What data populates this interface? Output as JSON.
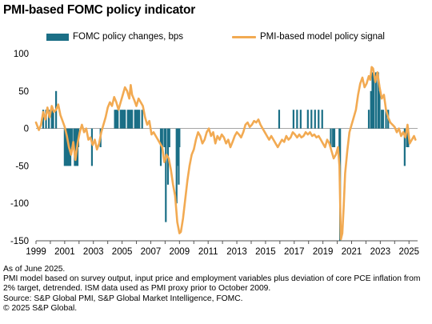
{
  "title": "PMI-based FOMC policy indicator",
  "chart_data": {
    "type": "bar+line",
    "title": "PMI-based FOMC policy indicator",
    "ylim": [
      -150,
      100
    ],
    "yticks": [
      100,
      50,
      0,
      -50,
      -100,
      -150
    ],
    "xlim": [
      1999,
      2025.6
    ],
    "xticks": [
      1999,
      2001,
      2003,
      2005,
      2007,
      2009,
      2011,
      2013,
      2015,
      2017,
      2019,
      2021,
      2023,
      2025
    ],
    "legend_position": "top",
    "series": [
      {
        "name": "FOMC policy changes, bps",
        "type": "bar",
        "color": "#1b6f86",
        "points": [
          [
            1999.5,
            25
          ],
          [
            1999.7,
            25
          ],
          [
            1999.9,
            25
          ],
          [
            2000.1,
            25
          ],
          [
            2000.2,
            25
          ],
          [
            2000.4,
            50
          ],
          [
            2001.0,
            -50
          ],
          [
            2001.1,
            -50
          ],
          [
            2001.2,
            -50
          ],
          [
            2001.3,
            -50
          ],
          [
            2001.4,
            -50
          ],
          [
            2001.5,
            -25
          ],
          [
            2001.65,
            -25
          ],
          [
            2001.7,
            -50
          ],
          [
            2001.8,
            -50
          ],
          [
            2001.9,
            -50
          ],
          [
            2001.95,
            -25
          ],
          [
            2002.9,
            -50
          ],
          [
            2003.5,
            -25
          ],
          [
            2004.5,
            25
          ],
          [
            2004.6,
            25
          ],
          [
            2004.7,
            25
          ],
          [
            2004.9,
            25
          ],
          [
            2005.0,
            25
          ],
          [
            2005.1,
            25
          ],
          [
            2005.2,
            25
          ],
          [
            2005.4,
            25
          ],
          [
            2005.5,
            25
          ],
          [
            2005.6,
            25
          ],
          [
            2005.7,
            25
          ],
          [
            2005.9,
            25
          ],
          [
            2006.0,
            25
          ],
          [
            2006.1,
            25
          ],
          [
            2006.2,
            25
          ],
          [
            2006.4,
            25
          ],
          [
            2007.7,
            -50
          ],
          [
            2007.8,
            -25
          ],
          [
            2007.95,
            -25
          ],
          [
            2008.05,
            -125
          ],
          [
            2008.2,
            -75
          ],
          [
            2008.3,
            -25
          ],
          [
            2008.8,
            -100
          ],
          [
            2008.9,
            -50
          ],
          [
            2008.95,
            -75
          ],
          [
            2009.0,
            -25
          ],
          [
            2015.95,
            25
          ],
          [
            2016.95,
            25
          ],
          [
            2017.2,
            25
          ],
          [
            2017.45,
            25
          ],
          [
            2017.95,
            25
          ],
          [
            2018.2,
            25
          ],
          [
            2018.45,
            25
          ],
          [
            2018.7,
            25
          ],
          [
            2018.95,
            25
          ],
          [
            2019.55,
            -25
          ],
          [
            2019.7,
            -25
          ],
          [
            2019.8,
            -25
          ],
          [
            2020.15,
            -50
          ],
          [
            2020.2,
            -150
          ],
          [
            2022.2,
            25
          ],
          [
            2022.35,
            50
          ],
          [
            2022.45,
            75
          ],
          [
            2022.55,
            75
          ],
          [
            2022.7,
            75
          ],
          [
            2022.85,
            75
          ],
          [
            2022.95,
            50
          ],
          [
            2023.1,
            25
          ],
          [
            2023.2,
            25
          ],
          [
            2023.4,
            25
          ],
          [
            2023.55,
            25
          ],
          [
            2024.7,
            -50
          ],
          [
            2024.85,
            -25
          ],
          [
            2024.95,
            -25
          ]
        ]
      },
      {
        "name": "PMI-based model policy signal",
        "type": "line",
        "color": "#f2aa52",
        "points": [
          [
            1999.0,
            8
          ],
          [
            1999.2,
            -2
          ],
          [
            1999.35,
            5
          ],
          [
            1999.5,
            22
          ],
          [
            1999.65,
            12
          ],
          [
            1999.8,
            28
          ],
          [
            1999.95,
            15
          ],
          [
            2000.1,
            30
          ],
          [
            2000.25,
            22
          ],
          [
            2000.4,
            25
          ],
          [
            2000.55,
            32
          ],
          [
            2000.7,
            18
          ],
          [
            2000.85,
            10
          ],
          [
            2001.0,
            2
          ],
          [
            2001.15,
            -10
          ],
          [
            2001.3,
            -25
          ],
          [
            2001.45,
            -35
          ],
          [
            2001.6,
            -18
          ],
          [
            2001.75,
            -42
          ],
          [
            2001.9,
            -20
          ],
          [
            2002.05,
            -5
          ],
          [
            2002.2,
            5
          ],
          [
            2002.35,
            -5
          ],
          [
            2002.5,
            0
          ],
          [
            2002.65,
            -15
          ],
          [
            2002.8,
            -12
          ],
          [
            2002.95,
            -22
          ],
          [
            2003.1,
            -15
          ],
          [
            2003.25,
            -28
          ],
          [
            2003.4,
            -20
          ],
          [
            2003.55,
            -5
          ],
          [
            2003.7,
            5
          ],
          [
            2003.85,
            15
          ],
          [
            2004.0,
            28
          ],
          [
            2004.15,
            35
          ],
          [
            2004.3,
            30
          ],
          [
            2004.45,
            42
          ],
          [
            2004.6,
            35
          ],
          [
            2004.75,
            25
          ],
          [
            2004.9,
            35
          ],
          [
            2005.05,
            45
          ],
          [
            2005.2,
            55
          ],
          [
            2005.35,
            50
          ],
          [
            2005.5,
            40
          ],
          [
            2005.6,
            58
          ],
          [
            2005.7,
            45
          ],
          [
            2005.85,
            38
          ],
          [
            2006.0,
            30
          ],
          [
            2006.15,
            40
          ],
          [
            2006.3,
            35
          ],
          [
            2006.45,
            30
          ],
          [
            2006.6,
            15
          ],
          [
            2006.75,
            5
          ],
          [
            2006.9,
            10
          ],
          [
            2007.05,
            -8
          ],
          [
            2007.2,
            -5
          ],
          [
            2007.35,
            -10
          ],
          [
            2007.5,
            -15
          ],
          [
            2007.65,
            -20
          ],
          [
            2007.8,
            -25
          ],
          [
            2007.95,
            -45
          ],
          [
            2008.1,
            -35
          ],
          [
            2008.25,
            -40
          ],
          [
            2008.4,
            -55
          ],
          [
            2008.55,
            -75
          ],
          [
            2008.7,
            -90
          ],
          [
            2008.85,
            -125
          ],
          [
            2009.0,
            -140
          ],
          [
            2009.1,
            -138
          ],
          [
            2009.25,
            -120
          ],
          [
            2009.4,
            -95
          ],
          [
            2009.55,
            -70
          ],
          [
            2009.7,
            -50
          ],
          [
            2009.85,
            -35
          ],
          [
            2010.0,
            -28
          ],
          [
            2010.15,
            -15
          ],
          [
            2010.3,
            -5
          ],
          [
            2010.45,
            -10
          ],
          [
            2010.6,
            -20
          ],
          [
            2010.75,
            -15
          ],
          [
            2010.9,
            -5
          ],
          [
            2011.05,
            0
          ],
          [
            2011.2,
            -10
          ],
          [
            2011.35,
            -5
          ],
          [
            2011.5,
            -20
          ],
          [
            2011.65,
            -10
          ],
          [
            2011.8,
            -15
          ],
          [
            2011.95,
            -8
          ],
          [
            2012.1,
            -12
          ],
          [
            2012.25,
            -20
          ],
          [
            2012.4,
            -15
          ],
          [
            2012.55,
            -25
          ],
          [
            2012.7,
            -18
          ],
          [
            2012.85,
            -10
          ],
          [
            2013.0,
            -5
          ],
          [
            2013.15,
            -8
          ],
          [
            2013.3,
            -12
          ],
          [
            2013.45,
            -5
          ],
          [
            2013.6,
            5
          ],
          [
            2013.75,
            8
          ],
          [
            2013.9,
            2
          ],
          [
            2014.05,
            5
          ],
          [
            2014.2,
            10
          ],
          [
            2014.35,
            8
          ],
          [
            2014.5,
            12
          ],
          [
            2014.65,
            5
          ],
          [
            2014.8,
            0
          ],
          [
            2014.95,
            -5
          ],
          [
            2015.1,
            -10
          ],
          [
            2015.25,
            -15
          ],
          [
            2015.4,
            -10
          ],
          [
            2015.55,
            -15
          ],
          [
            2015.7,
            -20
          ],
          [
            2015.85,
            -25
          ],
          [
            2016.0,
            -20
          ],
          [
            2016.15,
            -15
          ],
          [
            2016.3,
            -18
          ],
          [
            2016.45,
            -10
          ],
          [
            2016.6,
            -15
          ],
          [
            2016.75,
            -12
          ],
          [
            2016.9,
            -5
          ],
          [
            2017.05,
            -8
          ],
          [
            2017.2,
            -12
          ],
          [
            2017.35,
            -8
          ],
          [
            2017.5,
            -12
          ],
          [
            2017.65,
            -10
          ],
          [
            2017.8,
            -5
          ],
          [
            2017.95,
            -8
          ],
          [
            2018.1,
            -5
          ],
          [
            2018.25,
            -10
          ],
          [
            2018.4,
            -8
          ],
          [
            2018.55,
            -12
          ],
          [
            2018.7,
            -10
          ],
          [
            2018.85,
            -15
          ],
          [
            2019.0,
            -20
          ],
          [
            2019.15,
            -25
          ],
          [
            2019.3,
            -15
          ],
          [
            2019.45,
            -20
          ],
          [
            2019.6,
            -30
          ],
          [
            2019.75,
            -40
          ],
          [
            2019.9,
            -35
          ],
          [
            2020.05,
            -25
          ],
          [
            2020.15,
            -50
          ],
          [
            2020.25,
            -148
          ],
          [
            2020.35,
            -140
          ],
          [
            2020.45,
            -105
          ],
          [
            2020.55,
            -60
          ],
          [
            2020.7,
            -30
          ],
          [
            2020.85,
            -5
          ],
          [
            2021.0,
            5
          ],
          [
            2021.15,
            15
          ],
          [
            2021.3,
            25
          ],
          [
            2021.45,
            45
          ],
          [
            2021.6,
            60
          ],
          [
            2021.75,
            68
          ],
          [
            2021.9,
            55
          ],
          [
            2022.05,
            60
          ],
          [
            2022.2,
            70
          ],
          [
            2022.3,
            65
          ],
          [
            2022.4,
            82
          ],
          [
            2022.5,
            80
          ],
          [
            2022.65,
            62
          ],
          [
            2022.8,
            75
          ],
          [
            2022.95,
            55
          ],
          [
            2023.1,
            40
          ],
          [
            2023.25,
            45
          ],
          [
            2023.4,
            25
          ],
          [
            2023.55,
            15
          ],
          [
            2023.7,
            8
          ],
          [
            2023.85,
            5
          ],
          [
            2024.0,
            2
          ],
          [
            2024.15,
            -5
          ],
          [
            2024.3,
            0
          ],
          [
            2024.45,
            -10
          ],
          [
            2024.6,
            -5
          ],
          [
            2024.75,
            -12
          ],
          [
            2024.9,
            5
          ],
          [
            2025.05,
            -20
          ],
          [
            2025.2,
            -15
          ],
          [
            2025.35,
            -10
          ],
          [
            2025.45,
            -15
          ]
        ]
      }
    ]
  },
  "footer": {
    "line1": "As of June 2025.",
    "line2": "PMI model based on survey output, input price and employment variables plus deviation of core PCE inflation from 2% target, detrended.  ISM data used as PMI proxy prior to October 2009.",
    "line3": "Source: S&P Global PMI, S&P Global Market Intelligence, FOMC.",
    "line4": "© 2025 S&P Global."
  }
}
